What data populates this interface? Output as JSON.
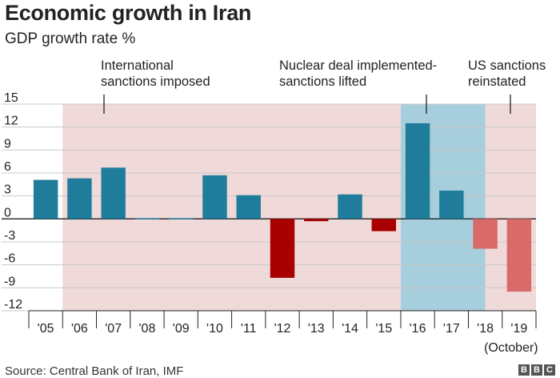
{
  "title": "Economic growth in Iran",
  "subtitle": "GDP growth rate %",
  "source": "Source: Central Bank of Iran, IMF",
  "logo_text": "BBC",
  "colors": {
    "sanctions_band": "#f0d9d9",
    "lifted_band": "#a7cedc",
    "positive_bar": "#1f7c9a",
    "negative_bar": "#a80000",
    "forecast_negative_bar": "#d86a6a",
    "gridline": "#c8c8c8",
    "axis": "#222222"
  },
  "annotations": [
    {
      "text": [
        "International",
        "sanctions imposed"
      ],
      "category": "'07"
    },
    {
      "text": [
        "Nuclear deal implemented-",
        "sanctions lifted"
      ],
      "category": "'17"
    },
    {
      "text": [
        "US sanctions",
        "reinstated"
      ],
      "category": "'19"
    }
  ],
  "chart_data": {
    "type": "bar",
    "title": "Economic growth in Iran",
    "subtitle": "GDP growth rate %",
    "categories": [
      "'05",
      "'06",
      "'07",
      "'08",
      "'09",
      "'10",
      "'11",
      "'12",
      "'13",
      "'14",
      "'15",
      "'16",
      "'17",
      "'18",
      "'19"
    ],
    "values": [
      5.1,
      5.3,
      6.7,
      0.1,
      0.1,
      5.7,
      3.1,
      -7.7,
      -0.3,
      3.2,
      -1.6,
      12.5,
      3.7,
      -3.9,
      -9.5
    ],
    "forecast_categories": [
      "'18",
      "'19"
    ],
    "xlabel": "",
    "ylabel": "",
    "x_note": "(October)",
    "ylim": [
      -12,
      15
    ],
    "yticks": [
      15,
      12,
      9,
      6,
      3,
      0,
      -3,
      -6,
      -9,
      -12
    ],
    "grid": true,
    "shaded_ranges": [
      {
        "type": "sanctions",
        "from": "'06",
        "to": "'15"
      },
      {
        "type": "lifted",
        "from": "'16",
        "to": "'18"
      },
      {
        "type": "sanctions",
        "from": "'18",
        "to": "'19"
      }
    ]
  }
}
